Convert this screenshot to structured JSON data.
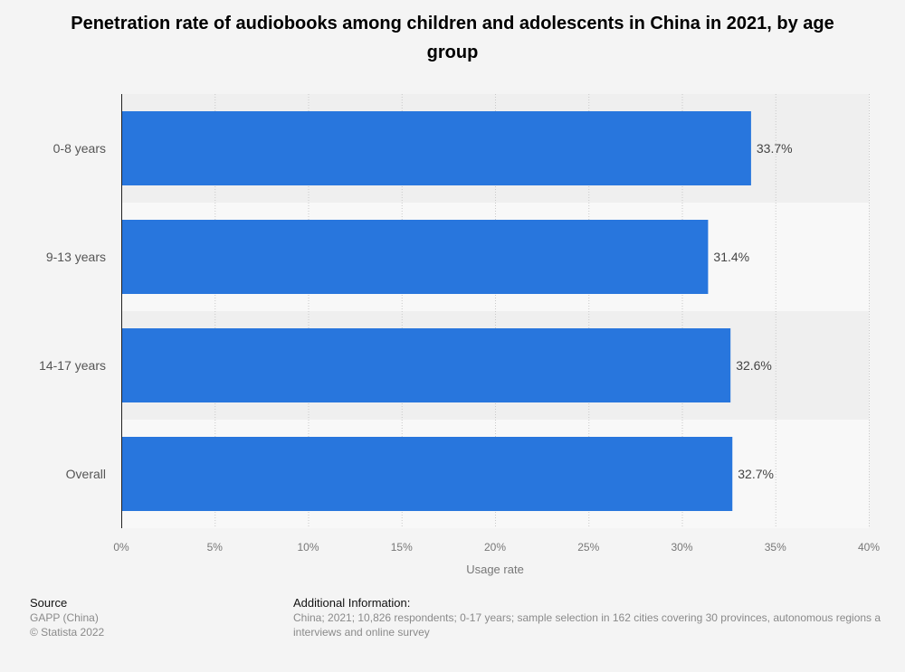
{
  "title": "Penetration rate of audiobooks among children and adolescents in China in 2021, by age group",
  "chart_data": {
    "type": "bar",
    "orientation": "horizontal",
    "categories": [
      "0-8 years",
      "9-13 years",
      "14-17 years",
      "Overall"
    ],
    "values": [
      33.7,
      31.4,
      32.6,
      32.7
    ],
    "value_labels": [
      "33.7%",
      "31.4%",
      "32.6%",
      "32.7%"
    ],
    "xlabel": "Usage rate",
    "ylabel": "",
    "xlim": [
      0,
      40
    ],
    "xticks": [
      0,
      5,
      10,
      15,
      20,
      25,
      30,
      35,
      40
    ],
    "xtick_labels": [
      "0%",
      "5%",
      "10%",
      "15%",
      "20%",
      "25%",
      "30%",
      "35%",
      "40%"
    ],
    "grid": "vertical dotted",
    "bar_color": "#2876dd"
  },
  "footer": {
    "source_heading": "Source",
    "source_lines": [
      "GAPP (China)",
      "© Statista 2022"
    ],
    "info_heading": "Additional Information:",
    "info_text": "China; 2021; 10,826 respondents; 0-17 years; sample selection in 162 cities covering 30 provinces, autonomous regions a interviews and online survey"
  }
}
